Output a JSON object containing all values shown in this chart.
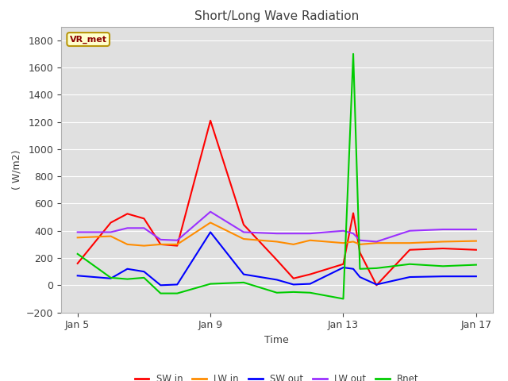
{
  "title": "Short/Long Wave Radiation",
  "xlabel": "Time",
  "ylabel": "( W/m2)",
  "ylim": [
    -200,
    1900
  ],
  "yticks": [
    -200,
    0,
    200,
    400,
    600,
    800,
    1000,
    1200,
    1400,
    1600,
    1800
  ],
  "xlim": [
    4.5,
    17.5
  ],
  "xtick_positions": [
    5,
    9,
    13,
    17
  ],
  "xtick_labels": [
    "Jan 5",
    "Jan 9",
    "Jan 13",
    "Jan 17"
  ],
  "watermark": "VR_met",
  "fig_facecolor": "#ffffff",
  "ax_facecolor": "#e0e0e0",
  "series": {
    "SW_in": {
      "color": "#ff0000",
      "x": [
        5,
        6,
        6.5,
        7,
        7.5,
        8,
        9,
        10,
        11,
        11.5,
        12,
        13,
        13.3,
        13.5,
        14,
        15,
        16,
        17
      ],
      "y": [
        160,
        460,
        525,
        490,
        300,
        290,
        1210,
        445,
        185,
        50,
        80,
        155,
        530,
        240,
        0,
        260,
        270,
        260
      ]
    },
    "LW_in": {
      "color": "#ff8c00",
      "x": [
        5,
        6,
        6.5,
        7,
        7.5,
        8,
        9,
        10,
        11,
        11.5,
        12,
        13,
        13.3,
        13.5,
        14,
        15,
        16,
        17
      ],
      "y": [
        350,
        360,
        300,
        290,
        300,
        300,
        460,
        340,
        320,
        300,
        330,
        310,
        320,
        300,
        310,
        310,
        320,
        325
      ]
    },
    "SW_out": {
      "color": "#0000ff",
      "x": [
        5,
        6,
        6.5,
        7,
        7.5,
        8,
        9,
        10,
        11,
        11.5,
        12,
        13,
        13.3,
        13.5,
        14,
        15,
        16,
        17
      ],
      "y": [
        70,
        50,
        120,
        100,
        0,
        5,
        390,
        80,
        40,
        5,
        10,
        130,
        120,
        60,
        5,
        60,
        65,
        65
      ]
    },
    "LW_out": {
      "color": "#9b30ff",
      "x": [
        5,
        6,
        6.5,
        7,
        7.5,
        8,
        9,
        10,
        11,
        11.5,
        12,
        13,
        13.3,
        13.5,
        14,
        15,
        16,
        17
      ],
      "y": [
        390,
        390,
        420,
        420,
        335,
        330,
        540,
        390,
        380,
        380,
        380,
        400,
        380,
        330,
        320,
        400,
        410,
        410
      ]
    },
    "Rnet": {
      "color": "#00cc00",
      "x": [
        5,
        6,
        6.5,
        7,
        7.5,
        8,
        9,
        10,
        11,
        11.5,
        12,
        13,
        13.3,
        13.5,
        14,
        15,
        16,
        17
      ],
      "y": [
        230,
        55,
        45,
        55,
        -60,
        -60,
        10,
        20,
        -55,
        -50,
        -55,
        -100,
        1700,
        120,
        125,
        155,
        140,
        150
      ]
    }
  },
  "legend_entries": [
    "SW in",
    "LW in",
    "SW out",
    "LW out",
    "Rnet"
  ],
  "legend_colors": [
    "#ff0000",
    "#ff8c00",
    "#0000ff",
    "#9b30ff",
    "#00cc00"
  ]
}
